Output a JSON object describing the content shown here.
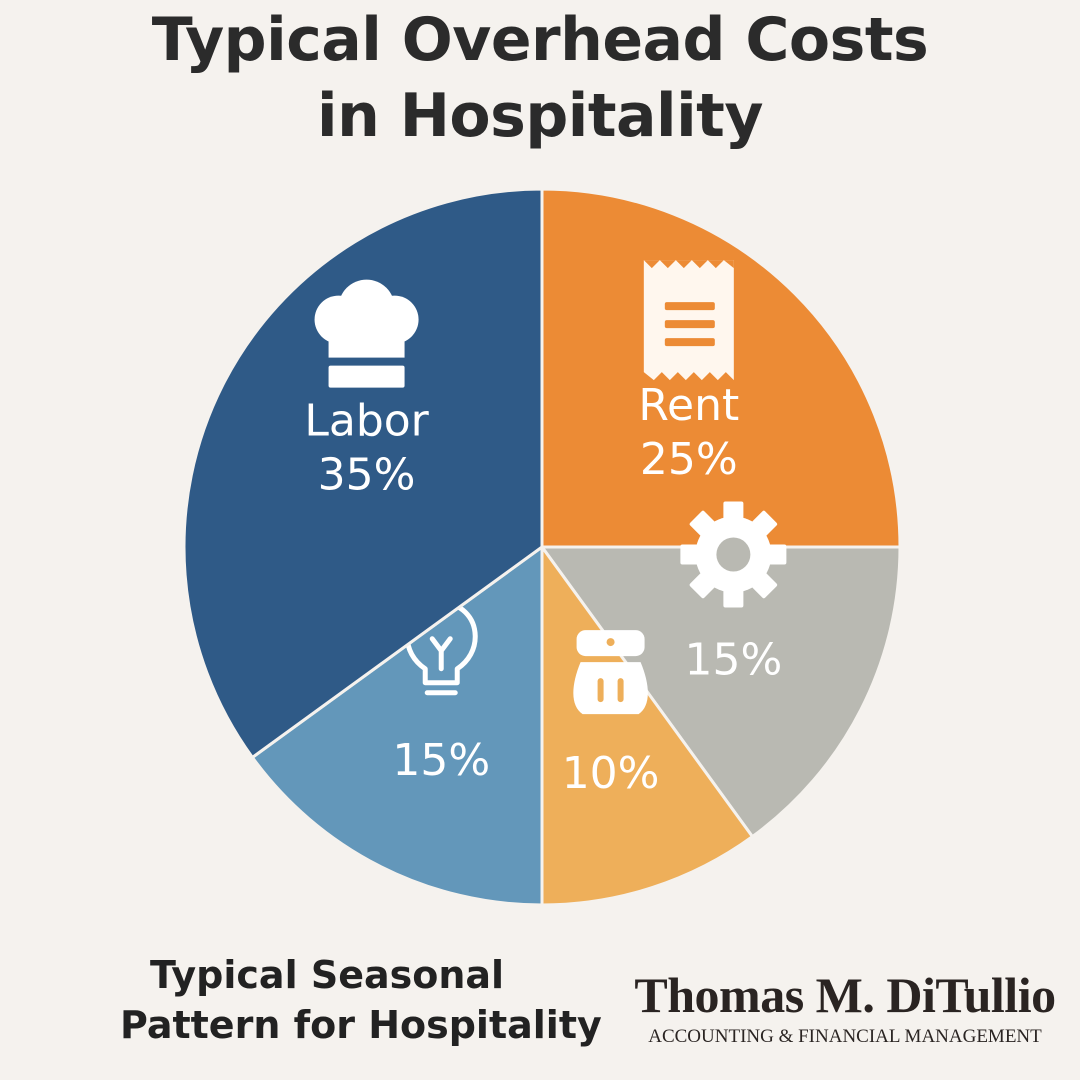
{
  "title": {
    "line1": "Typical Overhead Costs",
    "line2": "in Hospitality"
  },
  "chart_data": {
    "type": "pie",
    "title": "Typical Overhead Costs in Hospitality",
    "slices": [
      {
        "label": "Rent",
        "value": 25,
        "value_label": "25%",
        "color": "#ec8b35",
        "icon": "receipt-icon"
      },
      {
        "label": "",
        "value": 15,
        "value_label": "15%",
        "color": "#b9b9b2",
        "icon": "gear-icon"
      },
      {
        "label": "",
        "value": 10,
        "value_label": "10%",
        "color": "#eeaf5a",
        "icon": "cookware-icon"
      },
      {
        "label": "",
        "value": 15,
        "value_label": "15%",
        "color": "#6397ba",
        "icon": "lightbulb-icon"
      },
      {
        "label": "Labor",
        "value": 35,
        "value_label": "35%",
        "color": "#2f5a87",
        "icon": "chef-hat-icon"
      }
    ],
    "start_angle_degrees": 0,
    "direction": "clockwise",
    "legend": "none"
  },
  "footer": {
    "line1": "Typical Seasonal",
    "line2": "Pattern for Hospitality"
  },
  "brand": {
    "name": "Thomas M. DiTullio",
    "tagline": "ACCOUNTING & FINANCIAL MANAGEMENT"
  }
}
